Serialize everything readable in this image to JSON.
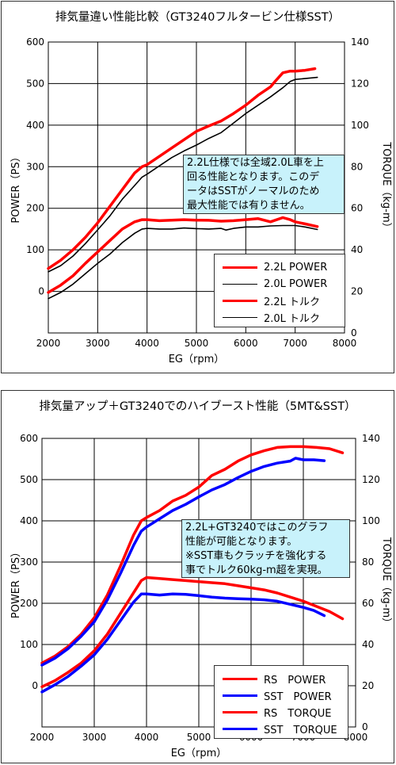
{
  "chart_data": [
    {
      "type": "line",
      "title": "排気量違い性能比較（GT3240フルタービン仕様SST）",
      "xlabel": "EG（rpm）",
      "ylabel": "POWER（PS）",
      "y2label": "TORQUE（kg-m）",
      "xlim": [
        2000,
        8000
      ],
      "ylim": [
        -100,
        600
      ],
      "y2lim": [
        0,
        140
      ],
      "x_ticks": [
        "2000",
        "3000",
        "4000",
        "5000",
        "6000",
        "7000",
        "8000"
      ],
      "y_ticks": [
        "0",
        "100",
        "200",
        "300",
        "400",
        "500",
        "600"
      ],
      "y2_ticks": [
        "0",
        "20",
        "40",
        "60",
        "80",
        "100",
        "120",
        "140"
      ],
      "grid": true,
      "legend_position": "bottom-right",
      "annotation": [
        "2.2L仕様では全域2.0L車を上",
        "回る性能となります。このデ",
        "ータはSSTがノーマルのため",
        "最大性能では有りません。"
      ],
      "series": [
        {
          "name": "2.2L POWER",
          "axis": "left",
          "color": "#ff0000",
          "width": 3.5,
          "x": [
            2000,
            2250,
            2500,
            2750,
            3000,
            3250,
            3500,
            3750,
            3900,
            4000,
            4250,
            4500,
            4750,
            5000,
            5250,
            5500,
            5750,
            6000,
            6250,
            6500,
            6600,
            6750,
            6900,
            7000,
            7200,
            7400
          ],
          "y": [
            55,
            75,
            100,
            130,
            165,
            205,
            245,
            285,
            300,
            305,
            325,
            345,
            365,
            385,
            398,
            410,
            428,
            448,
            472,
            492,
            506,
            526,
            530,
            530,
            532,
            536
          ]
        },
        {
          "name": "2.0L POWER",
          "axis": "left",
          "color": "#000000",
          "width": 1.6,
          "x": [
            2000,
            2250,
            2500,
            2750,
            3000,
            3250,
            3500,
            3750,
            3900,
            4000,
            4250,
            4500,
            4750,
            5000,
            5250,
            5500,
            5750,
            6000,
            6250,
            6500,
            6750,
            6900,
            7000,
            7200,
            7450
          ],
          "y": [
            47,
            62,
            85,
            115,
            148,
            182,
            222,
            255,
            275,
            282,
            302,
            322,
            338,
            352,
            368,
            382,
            405,
            428,
            448,
            468,
            490,
            505,
            510,
            512,
            515
          ]
        },
        {
          "name": "2.2L トルク",
          "axis": "right",
          "color": "#ff0000",
          "width": 3.5,
          "x": [
            2000,
            2250,
            2500,
            2750,
            3000,
            3250,
            3500,
            3750,
            3900,
            4000,
            4250,
            4500,
            4750,
            5000,
            5250,
            5500,
            5750,
            6000,
            6250,
            6500,
            6750,
            6900,
            7000,
            7200,
            7450
          ],
          "y": [
            19.5,
            23,
            27.5,
            33.5,
            39,
            44.5,
            50,
            53.5,
            54.5,
            54.5,
            54,
            54.3,
            54.5,
            54.3,
            54.2,
            53.8,
            54,
            54.5,
            55,
            53.5,
            55.5,
            54.5,
            53.5,
            52.5,
            51.2
          ]
        },
        {
          "name": "2.0L トルク",
          "axis": "right",
          "color": "#000000",
          "width": 1.6,
          "x": [
            2000,
            2250,
            2500,
            2750,
            3000,
            3250,
            3500,
            3750,
            3900,
            4000,
            4250,
            4500,
            4750,
            5000,
            5250,
            5500,
            5600,
            5750,
            6000,
            6250,
            6500,
            6750,
            7000,
            7200,
            7450
          ],
          "y": [
            16.5,
            19.5,
            23.5,
            28.5,
            33.5,
            38,
            43.5,
            48,
            50,
            50.3,
            50,
            50,
            50.5,
            50.2,
            50,
            50.3,
            49.5,
            50.3,
            51,
            51,
            51.5,
            51.7,
            51.7,
            51,
            49.8
          ]
        }
      ]
    },
    {
      "type": "line",
      "title": "排気量アップ＋GT3240でのハイブースト性能（5MT&SST）",
      "xlabel": "EG（rpm）",
      "ylabel": "POWER（PS）",
      "y2label": "TORQUE（kg-m）",
      "xlim": [
        2000,
        8000
      ],
      "ylim": [
        -100,
        600
      ],
      "y2lim": [
        0,
        140
      ],
      "x_ticks": [
        "2000",
        "3000",
        "4000",
        "5000",
        "6000",
        "7000",
        "8000"
      ],
      "y_ticks": [
        "0",
        "100",
        "200",
        "300",
        "400",
        "500",
        "600"
      ],
      "y2_ticks": [
        "0",
        "20",
        "40",
        "60",
        "80",
        "100",
        "120",
        "140"
      ],
      "grid": true,
      "legend_position": "bottom-right",
      "annotation": [
        "2.2L+GT3240ではこのグラフ",
        "性能が可能となります。",
        "※SST車もクラッチを強化する",
        "事でトルク60kg-m超を実現。"
      ],
      "series": [
        {
          "name": "RS　POWER",
          "axis": "left",
          "color": "#ff0000",
          "width": 3.5,
          "x": [
            2000,
            2250,
            2500,
            2750,
            3000,
            3250,
            3500,
            3750,
            3900,
            4000,
            4250,
            4500,
            4750,
            5000,
            5250,
            5500,
            5750,
            6000,
            6250,
            6500,
            6750,
            7000,
            7250,
            7500,
            7750
          ],
          "y": [
            55,
            72,
            95,
            125,
            165,
            220,
            290,
            365,
            400,
            408,
            425,
            448,
            462,
            482,
            510,
            525,
            545,
            560,
            570,
            578,
            580,
            580,
            578,
            575,
            565
          ]
        },
        {
          "name": "SST　POWER",
          "axis": "left",
          "color": "#0000ff",
          "width": 3.5,
          "x": [
            2000,
            2250,
            2500,
            2750,
            3000,
            3250,
            3500,
            3750,
            3900,
            4000,
            4250,
            4500,
            4750,
            5000,
            5250,
            5500,
            5750,
            6000,
            6250,
            6500,
            6750,
            6850,
            7000,
            7200,
            7400
          ],
          "y": [
            50,
            67,
            90,
            120,
            155,
            208,
            272,
            340,
            375,
            385,
            405,
            425,
            440,
            458,
            475,
            488,
            505,
            520,
            532,
            540,
            545,
            552,
            548,
            548,
            546
          ]
        },
        {
          "name": "RS　TORQUE",
          "axis": "right",
          "color": "#ff0000",
          "width": 3.5,
          "x": [
            2000,
            2250,
            2500,
            2750,
            3000,
            3250,
            3500,
            3750,
            3900,
            4000,
            4250,
            4500,
            4750,
            5000,
            5250,
            5500,
            5750,
            6000,
            6250,
            6500,
            6750,
            7000,
            7250,
            7500,
            7750
          ],
          "y": [
            19.5,
            22.5,
            26.5,
            31,
            37,
            45,
            55,
            65,
            71,
            72.5,
            72,
            71.5,
            71,
            70.5,
            70,
            69.5,
            68.5,
            67.5,
            66.5,
            65,
            63,
            61,
            58.5,
            56,
            52.5
          ]
        },
        {
          "name": "SST　TORQUE",
          "axis": "right",
          "color": "#0000ff",
          "width": 3.5,
          "x": [
            2000,
            2250,
            2500,
            2750,
            3000,
            3250,
            3500,
            3750,
            3900,
            4000,
            4250,
            4500,
            4750,
            5000,
            5250,
            5500,
            5750,
            6000,
            6250,
            6500,
            6750,
            7000,
            7200,
            7400
          ],
          "y": [
            17,
            20.5,
            24.5,
            29.5,
            35,
            42.5,
            51.5,
            60.5,
            64.5,
            64.5,
            64,
            64.5,
            64.3,
            63.7,
            63,
            62.5,
            62.2,
            62,
            61.7,
            61,
            59.5,
            58,
            56.5,
            54
          ]
        }
      ]
    }
  ],
  "colors": {
    "annotation_bg": "#c8f2fb",
    "grid": "#000000",
    "frame": "#333333"
  }
}
